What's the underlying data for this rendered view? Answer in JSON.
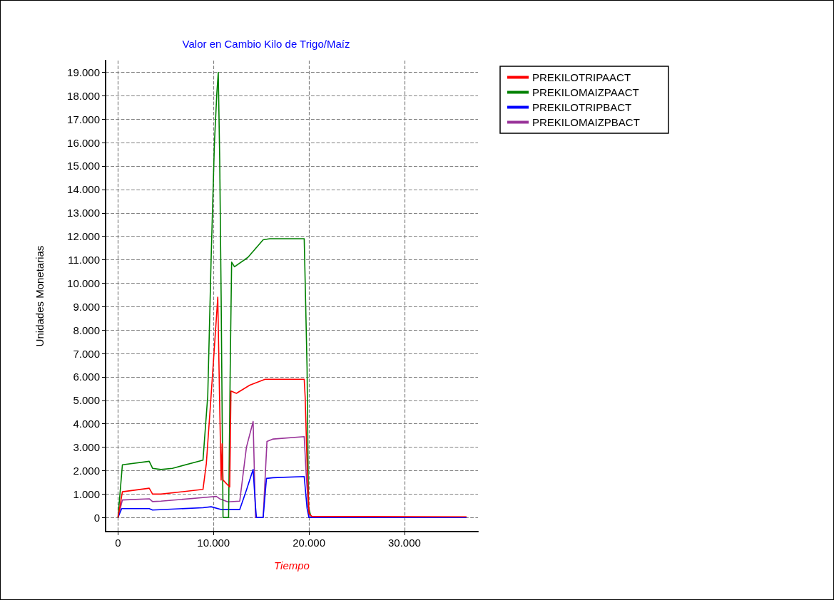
{
  "chart_data": {
    "type": "line",
    "title": "Valor en Cambio Kilo de Trigo/Maíz",
    "xlabel": "Tiempo",
    "ylabel": "Unidades Monetarias",
    "xlim": [
      -1300,
      37700
    ],
    "ylim": [
      -600,
      19500
    ],
    "xticks": [
      0,
      {
        "value": 10000,
        "label": "10.000"
      },
      {
        "value": 20000,
        "label": "20.000"
      },
      {
        "value": 30000,
        "label": "30.000"
      }
    ],
    "yticks": [
      0,
      {
        "value": 1000,
        "label": "1.000"
      },
      {
        "value": 2000,
        "label": "2.000"
      },
      {
        "value": 3000,
        "label": "3.000"
      },
      {
        "value": 4000,
        "label": "4.000"
      },
      {
        "value": 5000,
        "label": "5.000"
      },
      {
        "value": 6000,
        "label": "6.000"
      },
      {
        "value": 7000,
        "label": "7.000"
      },
      {
        "value": 8000,
        "label": "8.000"
      },
      {
        "value": 9000,
        "label": "9.000"
      },
      {
        "value": 10000,
        "label": "10.000"
      },
      {
        "value": 11000,
        "label": "11.000"
      },
      {
        "value": 12000,
        "label": "12.000"
      },
      {
        "value": 13000,
        "label": "13.000"
      },
      {
        "value": 14000,
        "label": "14.000"
      },
      {
        "value": 15000,
        "label": "15.000"
      },
      {
        "value": 16000,
        "label": "16.000"
      },
      {
        "value": 17000,
        "label": "17.000"
      },
      {
        "value": 18000,
        "label": "18.000"
      },
      {
        "value": 19000,
        "label": "19.000"
      }
    ],
    "grid": true,
    "legend": "top right",
    "marker": "none",
    "line_style": "solid",
    "series": [
      {
        "name": "PREKILOTRIPAACT",
        "color": "#ff0000",
        "x": [
          0,
          460,
          3270,
          3620,
          4500,
          8900,
          9250,
          9750,
          10100,
          10450,
          10650,
          10800,
          10900,
          11000,
          11700,
          11830,
          12400,
          13800,
          15400,
          19500,
          19600,
          19800,
          20000,
          20300,
          36500
        ],
        "values": [
          0,
          1100,
          1250,
          1000,
          1000,
          1200,
          2300,
          5200,
          7300,
          9400,
          4750,
          1600,
          3150,
          1600,
          1300,
          5400,
          5300,
          5650,
          5900,
          5900,
          5150,
          2300,
          170,
          50,
          30
        ]
      },
      {
        "name": "PREKILOMAIZPAACT",
        "color": "#008000",
        "x": [
          0,
          460,
          3270,
          3620,
          4500,
          5700,
          8900,
          9400,
          9750,
          10100,
          10350,
          10500,
          10650,
          10800,
          11000,
          11580,
          11760,
          11900,
          12200,
          13600,
          15200,
          15900,
          19500,
          19600,
          19800,
          19950,
          20200
        ],
        "values": [
          0,
          2250,
          2400,
          2100,
          2050,
          2100,
          2450,
          5200,
          11000,
          16000,
          18100,
          19000,
          15300,
          9500,
          0,
          0,
          6650,
          10900,
          10700,
          11100,
          11850,
          11900,
          11900,
          10100,
          6350,
          450,
          50
        ]
      },
      {
        "name": "PREKILOTRIPBACT",
        "color": "#0000ff",
        "x": [
          0,
          390,
          3270,
          3620,
          8900,
          9750,
          10800,
          12750,
          13450,
          14150,
          14400,
          14500,
          15200,
          15550,
          16250,
          19500,
          19800,
          20000,
          36500
        ],
        "values": [
          0,
          380,
          380,
          320,
          420,
          460,
          340,
          340,
          1170,
          2050,
          460,
          0,
          0,
          1670,
          1700,
          1750,
          390,
          0,
          0
        ]
      },
      {
        "name": "PREKILOMAIZPBACT",
        "color": "#993399",
        "x": [
          0,
          460,
          3270,
          3620,
          4500,
          8900,
          10300,
          10650,
          11500,
          12750,
          13450,
          14150,
          14400,
          15200,
          15600,
          16250,
          19500,
          19700,
          20000,
          20300
        ],
        "values": [
          0,
          750,
          800,
          680,
          700,
          850,
          900,
          800,
          670,
          700,
          3000,
          4100,
          0,
          0,
          3250,
          3350,
          3450,
          1900,
          0,
          30
        ]
      }
    ]
  }
}
